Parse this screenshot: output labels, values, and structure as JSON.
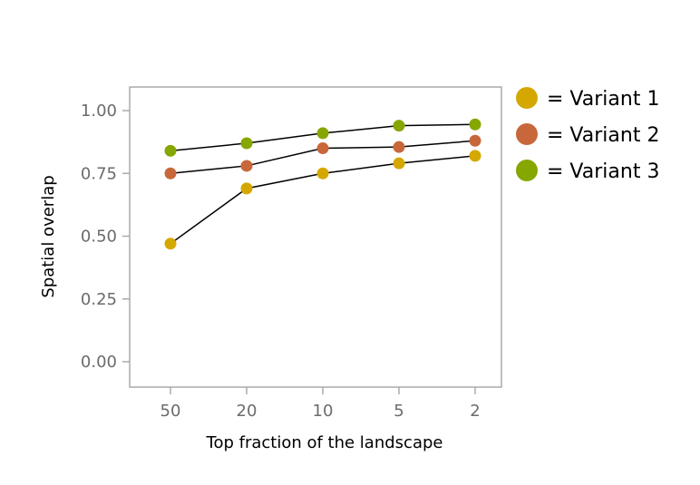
{
  "chart_data": {
    "type": "line",
    "categories": [
      "50",
      "20",
      "10",
      "5",
      "2"
    ],
    "series": [
      {
        "name": "Variant 1",
        "color": "#d4a800",
        "values": [
          0.47,
          0.69,
          0.75,
          0.79,
          0.82
        ]
      },
      {
        "name": "Variant 2",
        "color": "#c8673a",
        "values": [
          0.75,
          0.78,
          0.85,
          0.855,
          0.88
        ]
      },
      {
        "name": "Variant 3",
        "color": "#86a600",
        "values": [
          0.84,
          0.87,
          0.91,
          0.94,
          0.945
        ]
      }
    ],
    "legend_labels": [
      "= Variant 1",
      "= Variant 2",
      "= Variant 3"
    ],
    "xlabel": "Top fraction of the landscape",
    "ylabel": "Spatial overlap",
    "yticks": [
      "0.00",
      "0.25",
      "0.50",
      "0.75",
      "1.00"
    ],
    "ylim": [
      -0.1,
      1.1
    ],
    "grid": false,
    "legend_position": "right, outside top"
  }
}
